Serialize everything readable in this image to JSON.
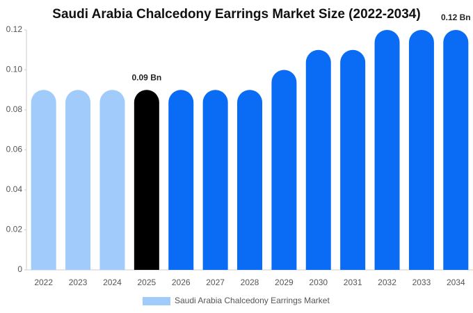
{
  "chart_data": {
    "type": "bar",
    "title": "Saudi Arabia Chalcedony Earrings Market Size (2022-2034)",
    "categories": [
      "2022",
      "2023",
      "2024",
      "2025",
      "2026",
      "2027",
      "2028",
      "2029",
      "2030",
      "2031",
      "2032",
      "2033",
      "2034"
    ],
    "series": [
      {
        "name": "Saudi Arabia Chalcedony Earrings Market",
        "color": "#a0cbfb",
        "colors": [
          "#a0cbfb",
          "#a0cbfb",
          "#a0cbfb",
          "#000000",
          "#0a6cf5",
          "#0a6cf5",
          "#0a6cf5",
          "#0a6cf5",
          "#0a6cf5",
          "#0a6cf5",
          "#0a6cf5",
          "#0a6cf5",
          "#0a6cf5"
        ],
        "values": [
          0.09,
          0.09,
          0.09,
          0.09,
          0.09,
          0.09,
          0.09,
          0.1,
          0.11,
          0.11,
          0.12,
          0.12,
          0.12
        ],
        "value_labels": [
          null,
          null,
          null,
          "0.09 Bn",
          null,
          null,
          null,
          null,
          null,
          null,
          null,
          null,
          "0.12 Bn"
        ]
      }
    ],
    "ylim": [
      0,
      0.12
    ],
    "yticks": [
      0,
      0.02,
      0.04,
      0.06,
      0.08,
      {
        "value": 0.1,
        "label": "0.10"
      },
      0.12
    ],
    "grid": false
  }
}
